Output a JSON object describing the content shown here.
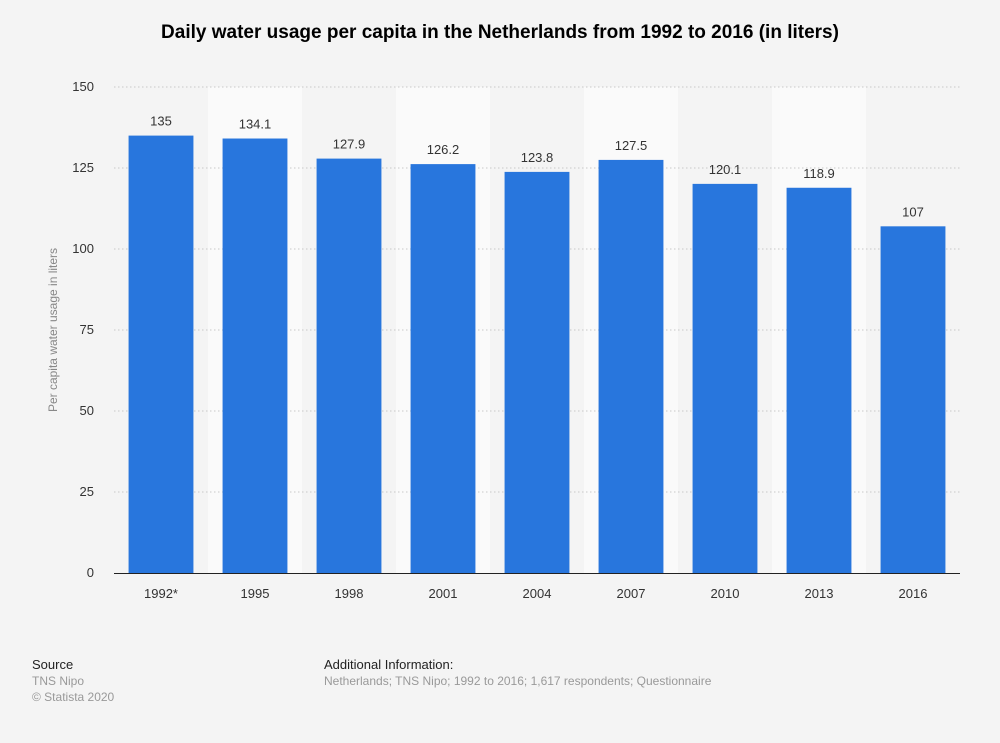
{
  "title": "Daily water usage per capita in the Netherlands from 1992 to 2016 (in liters)",
  "footer": {
    "source_heading": "Source",
    "source_name": "TNS Nipo",
    "copyright": "© Statista 2020",
    "info_heading": "Additional Information:",
    "info_text": "Netherlands; TNS Nipo; 1992 to 2016; 1,617 respondents; Questionnaire"
  },
  "chart_data": {
    "type": "bar",
    "categories": [
      "1992*",
      "1995",
      "1998",
      "2001",
      "2004",
      "2007",
      "2010",
      "2013",
      "2016"
    ],
    "values": [
      135,
      134.1,
      127.9,
      126.2,
      123.8,
      127.5,
      120.1,
      118.9,
      107
    ],
    "value_labels": [
      "135",
      "134.1",
      "127.9",
      "126.2",
      "123.8",
      "127.5",
      "120.1",
      "118.9",
      "107"
    ],
    "ylabel": "Per capita water usage in liters",
    "xlabel": "",
    "ylim": [
      0,
      150
    ],
    "yticks": [
      0,
      25,
      50,
      75,
      100,
      125,
      150
    ],
    "grid": true,
    "bar_color": "#2876dd",
    "alt_band_color": "#fafafa"
  }
}
